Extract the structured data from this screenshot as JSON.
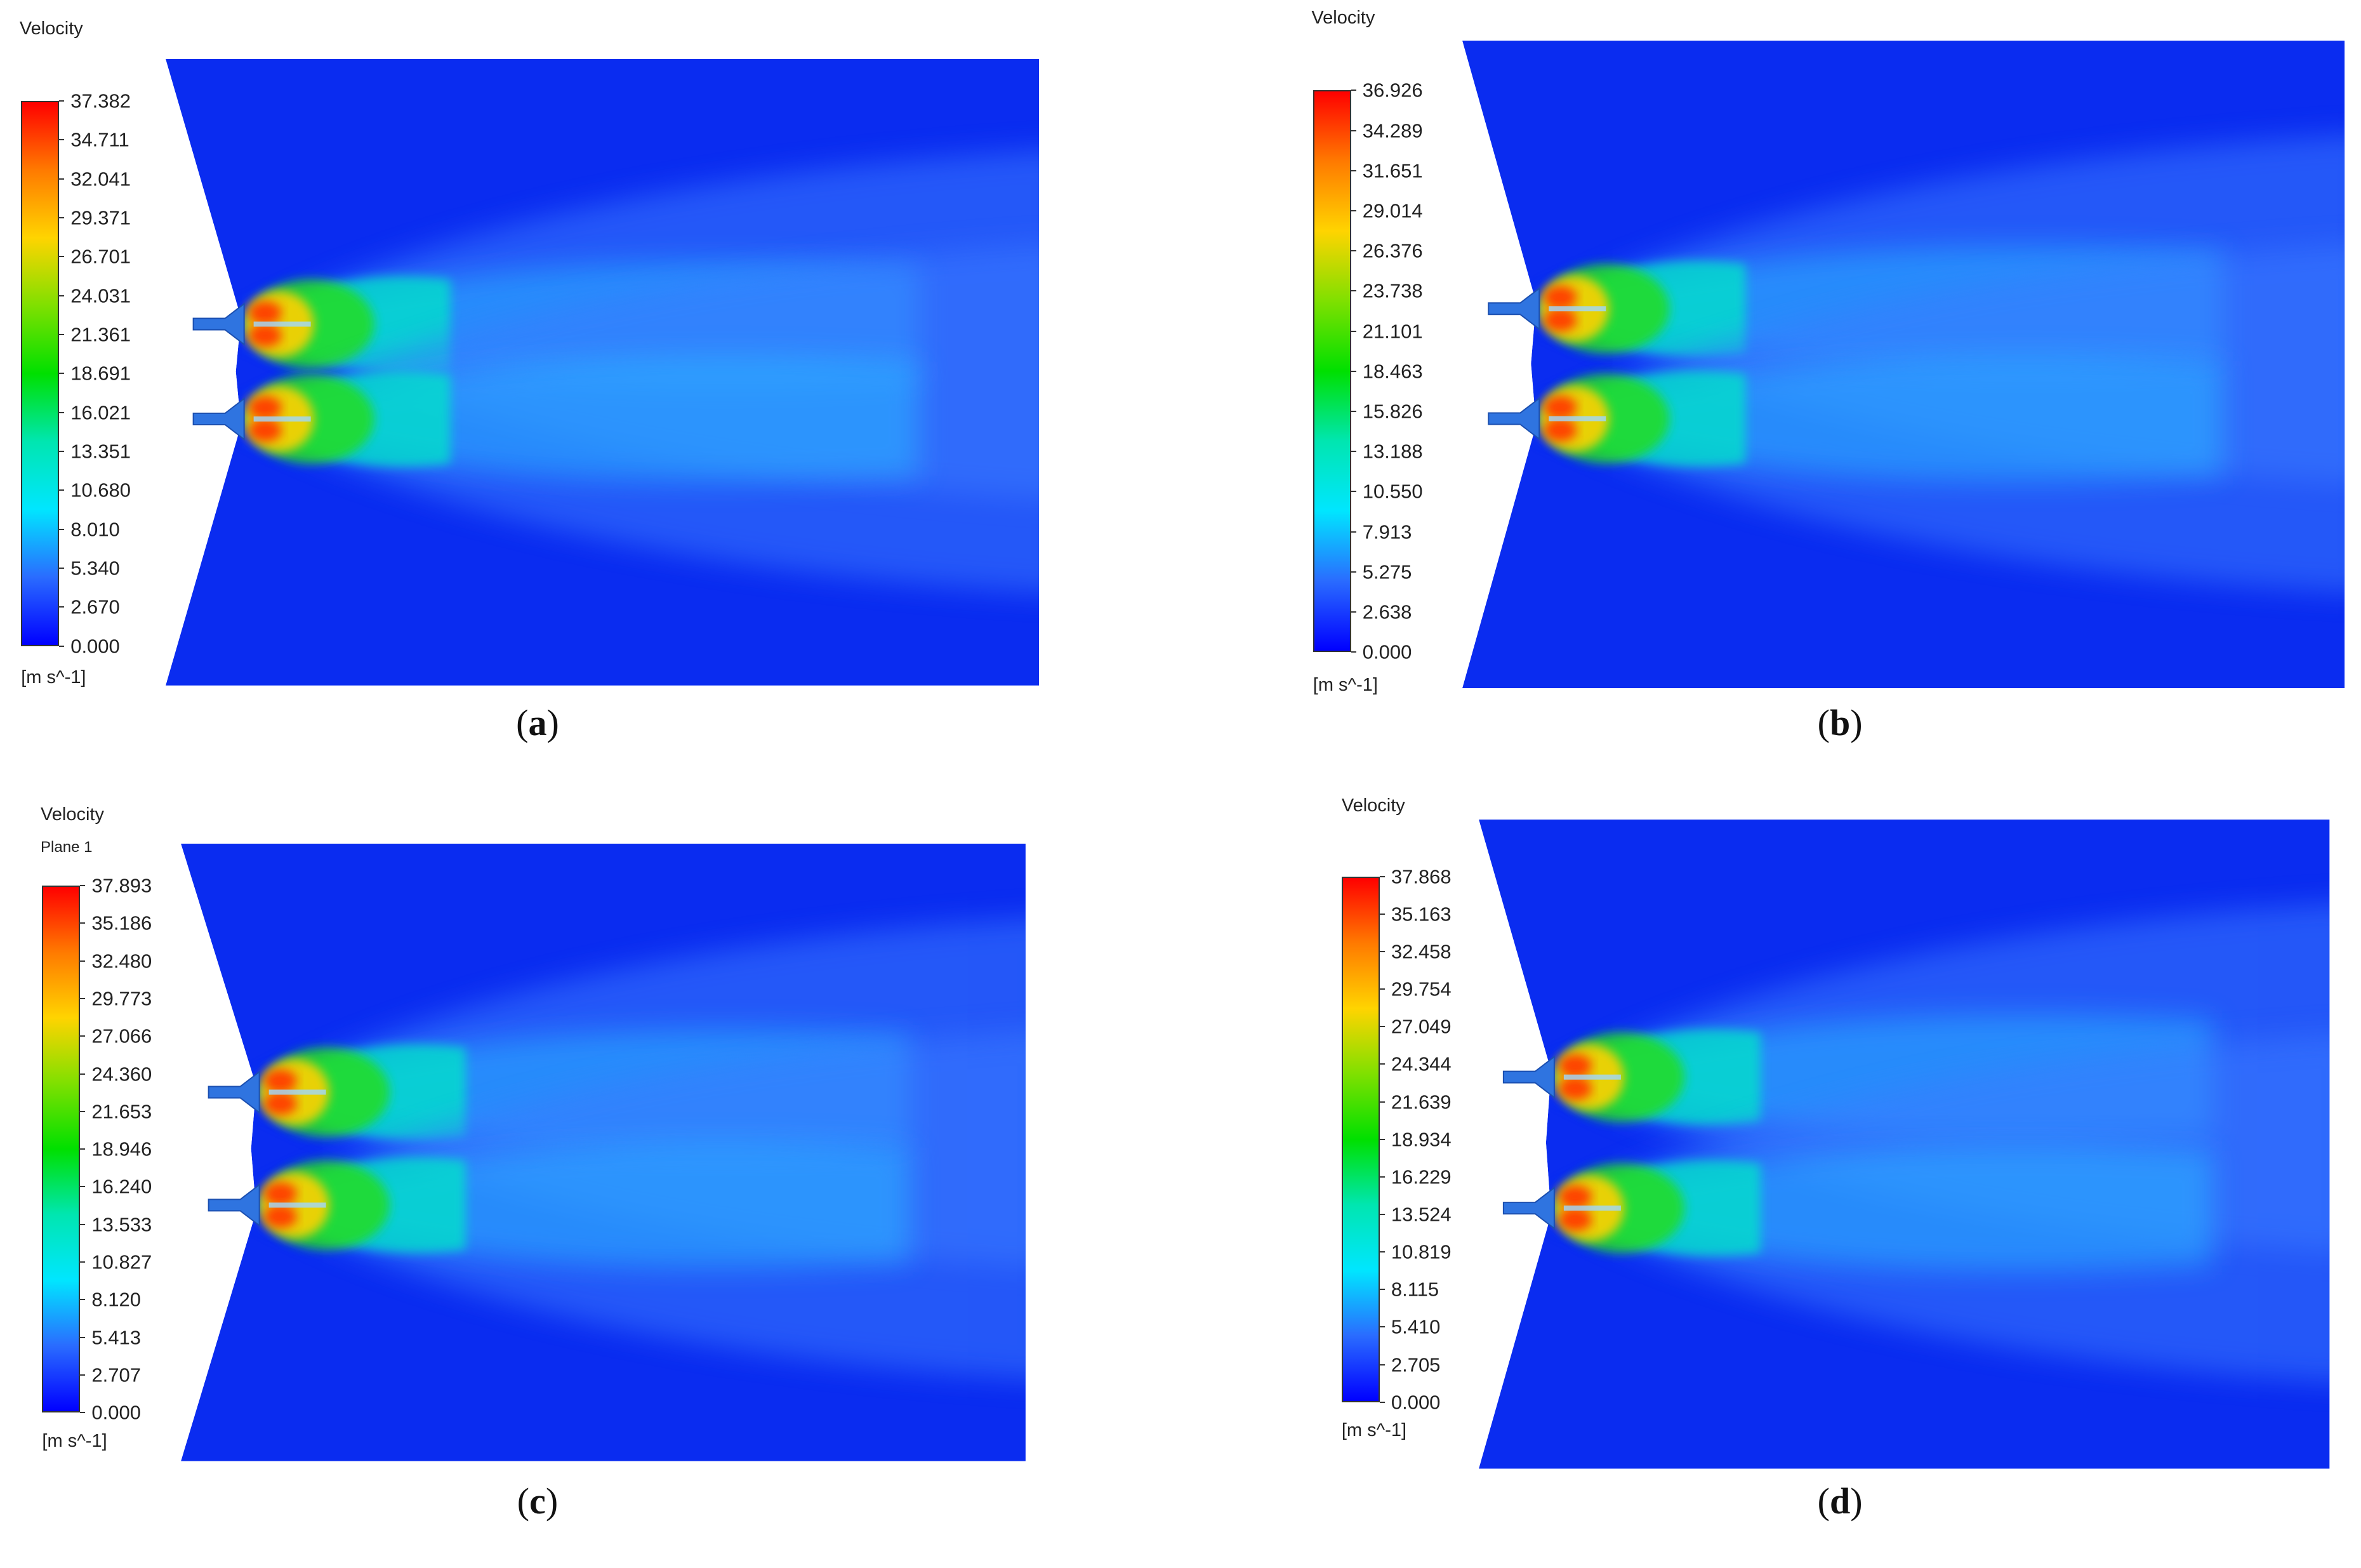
{
  "panels": [
    {
      "caption_letter": "a",
      "title": "Velocity",
      "subtitle": "",
      "unit": "[m s^-1]",
      "colorbar_ticks": [
        "37.382",
        "34.711",
        "32.041",
        "29.371",
        "26.701",
        "24.031",
        "21.361",
        "18.691",
        "16.021",
        "13.351",
        "10.680",
        "8.010",
        "5.340",
        "2.670",
        "0.000"
      ]
    },
    {
      "caption_letter": "b",
      "title": "Velocity",
      "subtitle": "",
      "unit": "[m s^-1]",
      "colorbar_ticks": [
        "36.926",
        "34.289",
        "31.651",
        "29.014",
        "26.376",
        "23.738",
        "21.101",
        "18.463",
        "15.826",
        "13.188",
        "10.550",
        "7.913",
        "5.275",
        "2.638",
        "0.000"
      ]
    },
    {
      "caption_letter": "c",
      "title": "Velocity",
      "subtitle": "Plane 1",
      "unit": "[m s^-1]",
      "colorbar_ticks": [
        "37.893",
        "35.186",
        "32.480",
        "29.773",
        "27.066",
        "24.360",
        "21.653",
        "18.946",
        "16.240",
        "13.533",
        "10.827",
        "8.120",
        "5.413",
        "2.707",
        "0.000"
      ]
    },
    {
      "caption_letter": "d",
      "title": "Velocity",
      "subtitle": "",
      "unit": "[m s^-1]",
      "colorbar_ticks": [
        "37.868",
        "35.163",
        "32.458",
        "29.754",
        "27.049",
        "24.344",
        "21.639",
        "18.934",
        "16.229",
        "13.524",
        "10.819",
        "8.115",
        "5.410",
        "2.705",
        "0.000"
      ]
    }
  ],
  "colors": {
    "field_background": "#0a2cf0",
    "colormap": [
      "#ff0000",
      "#ff7a00",
      "#ffd400",
      "#7fe000",
      "#00e000",
      "#00e6b0",
      "#00e6ff",
      "#2a6cff",
      "#0000ff"
    ]
  }
}
